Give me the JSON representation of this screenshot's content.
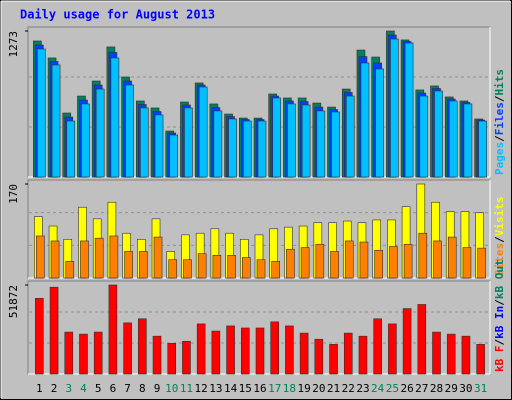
{
  "chart_data": [
    {
      "type": "bar",
      "title": "Daily usage for August 2013",
      "ylim": [
        0,
        1273
      ],
      "yticks": [
        1273
      ],
      "legend_separator": "/",
      "series": [
        {
          "name": "Hits",
          "color": "#00805c",
          "values": [
            1186,
            1038,
            558,
            706,
            837,
            1134,
            872,
            663,
            602,
            401,
            654,
            820,
            637,
            549,
            514,
            514,
            724,
            689,
            689,
            645,
            610,
            767,
            1107,
            1046,
            1273,
            1195,
            759,
            794,
            698,
            663,
            506
          ]
        },
        {
          "name": "Files",
          "color": "#0040ff",
          "values": [
            1151,
            1007,
            523,
            671,
            802,
            1086,
            837,
            632,
            571,
            384,
            628,
            802,
            606,
            527,
            501,
            501,
            706,
            663,
            658,
            610,
            588,
            737,
            1050,
            994,
            1238,
            1181,
            732,
            772,
            680,
            650,
            497
          ]
        },
        {
          "name": "Pages",
          "color": "#00c0ff",
          "values": [
            1116,
            977,
            488,
            637,
            767,
            1038,
            802,
            602,
            541,
            366,
            602,
            785,
            576,
            506,
            488,
            488,
            689,
            637,
            628,
            576,
            567,
            706,
            994,
            942,
            1203,
            1168,
            706,
            750,
            663,
            637,
            488
          ]
        }
      ]
    },
    {
      "type": "bar",
      "ylim": [
        0,
        170
      ],
      "yticks": [
        170
      ],
      "legend_separator": "/",
      "series": [
        {
          "name": "Visits",
          "color": "#ffff00",
          "values": [
            111,
            94,
            70,
            128,
            107,
            137,
            81,
            70,
            107,
            48,
            78,
            81,
            89,
            81,
            70,
            78,
            89,
            92,
            94,
            100,
            100,
            103,
            100,
            105,
            105,
            129,
            170,
            137,
            120,
            120,
            118
          ]
        },
        {
          "name": "Sites",
          "color": "#ff8000",
          "values": [
            76,
            67,
            30,
            67,
            72,
            76,
            48,
            48,
            74,
            33,
            33,
            44,
            41,
            41,
            37,
            33,
            30,
            52,
            55,
            61,
            48,
            67,
            65,
            50,
            57,
            61,
            81,
            67,
            74,
            55,
            54
          ]
        }
      ]
    },
    {
      "type": "bar",
      "ylim": [
        0,
        51872
      ],
      "yticks": [
        51872
      ],
      "legend_separator": "/",
      "categories": [
        "1",
        "2",
        "3",
        "4",
        "5",
        "6",
        "7",
        "8",
        "9",
        "10",
        "11",
        "12",
        "13",
        "14",
        "15",
        "16",
        "17",
        "18",
        "19",
        "20",
        "21",
        "22",
        "23",
        "24",
        "25",
        "26",
        "27",
        "28",
        "29",
        "30",
        "31"
      ],
      "category_colors": [
        "#000000",
        "#000000",
        "#00805c",
        "#00805c",
        "#000000",
        "#000000",
        "#000000",
        "#000000",
        "#000000",
        "#00805c",
        "#00805c",
        "#000000",
        "#000000",
        "#000000",
        "#000000",
        "#000000",
        "#00805c",
        "#00805c",
        "#000000",
        "#000000",
        "#000000",
        "#000000",
        "#000000",
        "#00805c",
        "#00805c",
        "#000000",
        "#000000",
        "#000000",
        "#000000",
        "#000000",
        "#00805c"
      ],
      "series": [
        {
          "name": "kB F",
          "color": "#ff0000",
          "values": [
            44104,
            50600,
            24436,
            23244,
            24436,
            51872,
            29800,
            32184,
            22052,
            17880,
            19072,
            29204,
            25032,
            28012,
            26820,
            26820,
            30396,
            28012,
            23840,
            20264,
            17284,
            23840,
            22052,
            32184,
            29204,
            38144,
            40528,
            24436,
            23244,
            22052,
            17284
          ]
        }
      ],
      "legend_only": [
        {
          "name": "kB In",
          "color": "#0000ff"
        },
        {
          "name": "kB Out",
          "color": "#00805c"
        }
      ]
    }
  ]
}
